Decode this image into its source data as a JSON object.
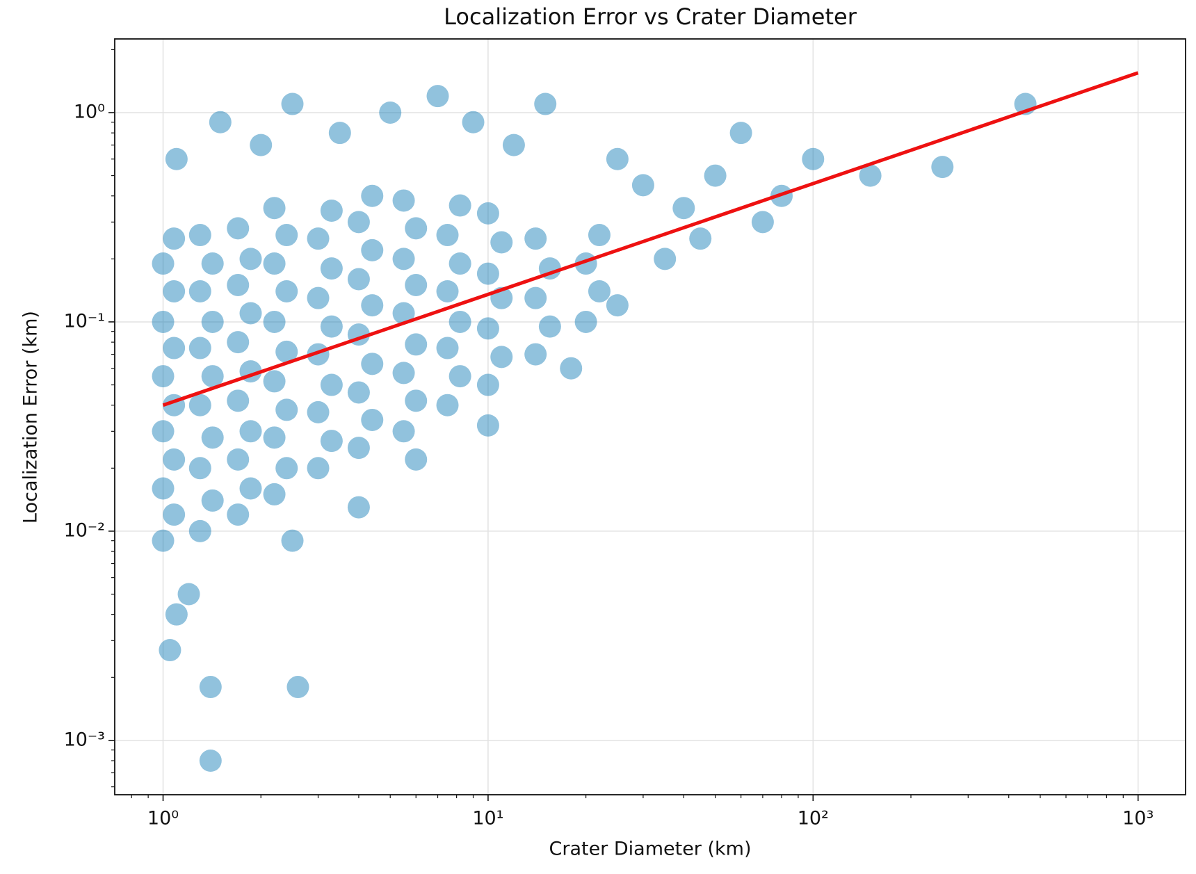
{
  "chart_data": {
    "type": "scatter",
    "title": "Localization Error vs Crater Diameter",
    "x_label": "Crater Diameter (km)",
    "y_label": "Localization Error (km)",
    "xscale": "log",
    "yscale": "log",
    "grid": true,
    "xlim": [
      0.71,
      1400
    ],
    "ylim": [
      0.00055,
      2.25
    ],
    "xticks": [
      {
        "value": 1,
        "label": "10⁰"
      },
      {
        "value": 10,
        "label": "10¹"
      },
      {
        "value": 100,
        "label": "10²"
      },
      {
        "value": 1000,
        "label": "10³"
      }
    ],
    "yticks": [
      {
        "value": 0.001,
        "label": "10⁻³"
      },
      {
        "value": 0.01,
        "label": "10⁻²"
      },
      {
        "value": 0.1,
        "label": "10⁻¹"
      },
      {
        "value": 1,
        "label": "10⁰"
      }
    ],
    "xminorticks": [
      0.8,
      0.9,
      2,
      3,
      4,
      5,
      6,
      7,
      8,
      9,
      20,
      30,
      40,
      50,
      60,
      70,
      80,
      90,
      200,
      300,
      400,
      500,
      600,
      700,
      800,
      900
    ],
    "yminorticks": [
      0.0006,
      0.0007,
      0.0008,
      0.0009,
      0.002,
      0.003,
      0.004,
      0.005,
      0.006,
      0.007,
      0.008,
      0.009,
      0.02,
      0.03,
      0.04,
      0.05,
      0.06,
      0.07,
      0.08,
      0.09,
      0.2,
      0.3,
      0.4,
      0.5,
      0.6,
      0.7,
      0.8,
      0.9,
      2
    ],
    "series": [
      {
        "type": "scatter",
        "color": "#0a78b4",
        "x": [
          1,
          1.08,
          1,
          1.08,
          1,
          1.08,
          1,
          1.08,
          1,
          1.08,
          1,
          1.08,
          1.3,
          1.42,
          1.3,
          1.42,
          1.3,
          1.42,
          1.3,
          1.42,
          1.3,
          1.42,
          1.3,
          1.7,
          1.86,
          1.7,
          1.86,
          1.7,
          1.86,
          1.7,
          1.86,
          1.7,
          1.86,
          1.7,
          2.2,
          2.4,
          2.2,
          2.4,
          2.2,
          2.4,
          2.2,
          2.4,
          2.2,
          2.4,
          2.2,
          3,
          3.3,
          3,
          3.3,
          3,
          3.3,
          3,
          3.3,
          3,
          3.3,
          4,
          4.4,
          4,
          4.4,
          4,
          4.4,
          4,
          4.4,
          4,
          4.4,
          5.5,
          6,
          5.5,
          6,
          5.5,
          6,
          5.5,
          6,
          5.5,
          7.5,
          8.2,
          7.5,
          8.2,
          7.5,
          8.2,
          7.5,
          8.2,
          10,
          11,
          10,
          11,
          10,
          11,
          10,
          14,
          15.5,
          14,
          15.5,
          14,
          20,
          22,
          20,
          22,
          1.1,
          1.5,
          2,
          2.5,
          3.5,
          5,
          7,
          9,
          12,
          15,
          25,
          30,
          40,
          50,
          60,
          80,
          100,
          150,
          250,
          450,
          1.2,
          1.1,
          1.4,
          2.6,
          1.4,
          1.05,
          35,
          45,
          70,
          18,
          25,
          6,
          10,
          4,
          2.5
        ],
        "values": [
          0.009,
          0.012,
          0.016,
          0.022,
          0.03,
          0.04,
          0.055,
          0.075,
          0.1,
          0.14,
          0.19,
          0.25,
          0.01,
          0.014,
          0.02,
          0.028,
          0.04,
          0.055,
          0.075,
          0.1,
          0.14,
          0.19,
          0.26,
          0.012,
          0.016,
          0.022,
          0.03,
          0.042,
          0.058,
          0.08,
          0.11,
          0.15,
          0.2,
          0.28,
          0.015,
          0.02,
          0.028,
          0.038,
          0.052,
          0.072,
          0.1,
          0.14,
          0.19,
          0.26,
          0.35,
          0.02,
          0.027,
          0.037,
          0.05,
          0.07,
          0.095,
          0.13,
          0.18,
          0.25,
          0.34,
          0.025,
          0.034,
          0.046,
          0.063,
          0.087,
          0.12,
          0.16,
          0.22,
          0.3,
          0.4,
          0.03,
          0.042,
          0.057,
          0.078,
          0.11,
          0.15,
          0.2,
          0.28,
          0.38,
          0.04,
          0.055,
          0.075,
          0.1,
          0.14,
          0.19,
          0.26,
          0.36,
          0.05,
          0.068,
          0.093,
          0.13,
          0.17,
          0.24,
          0.33,
          0.07,
          0.095,
          0.13,
          0.18,
          0.25,
          0.1,
          0.14,
          0.19,
          0.26,
          0.6,
          0.9,
          0.7,
          1.1,
          0.8,
          1.0,
          1.2,
          0.9,
          0.7,
          1.1,
          0.6,
          0.45,
          0.35,
          0.5,
          0.8,
          0.4,
          0.6,
          0.5,
          0.55,
          1.1,
          0.005,
          0.004,
          0.0018,
          0.0018,
          0.0008,
          0.0027,
          0.2,
          0.25,
          0.3,
          0.06,
          0.12,
          0.022,
          0.032,
          0.013,
          0.009
        ]
      },
      {
        "type": "line",
        "color": "#ee1111",
        "x": [
          1,
          1000
        ],
        "values": [
          0.04,
          1.55
        ]
      }
    ]
  }
}
